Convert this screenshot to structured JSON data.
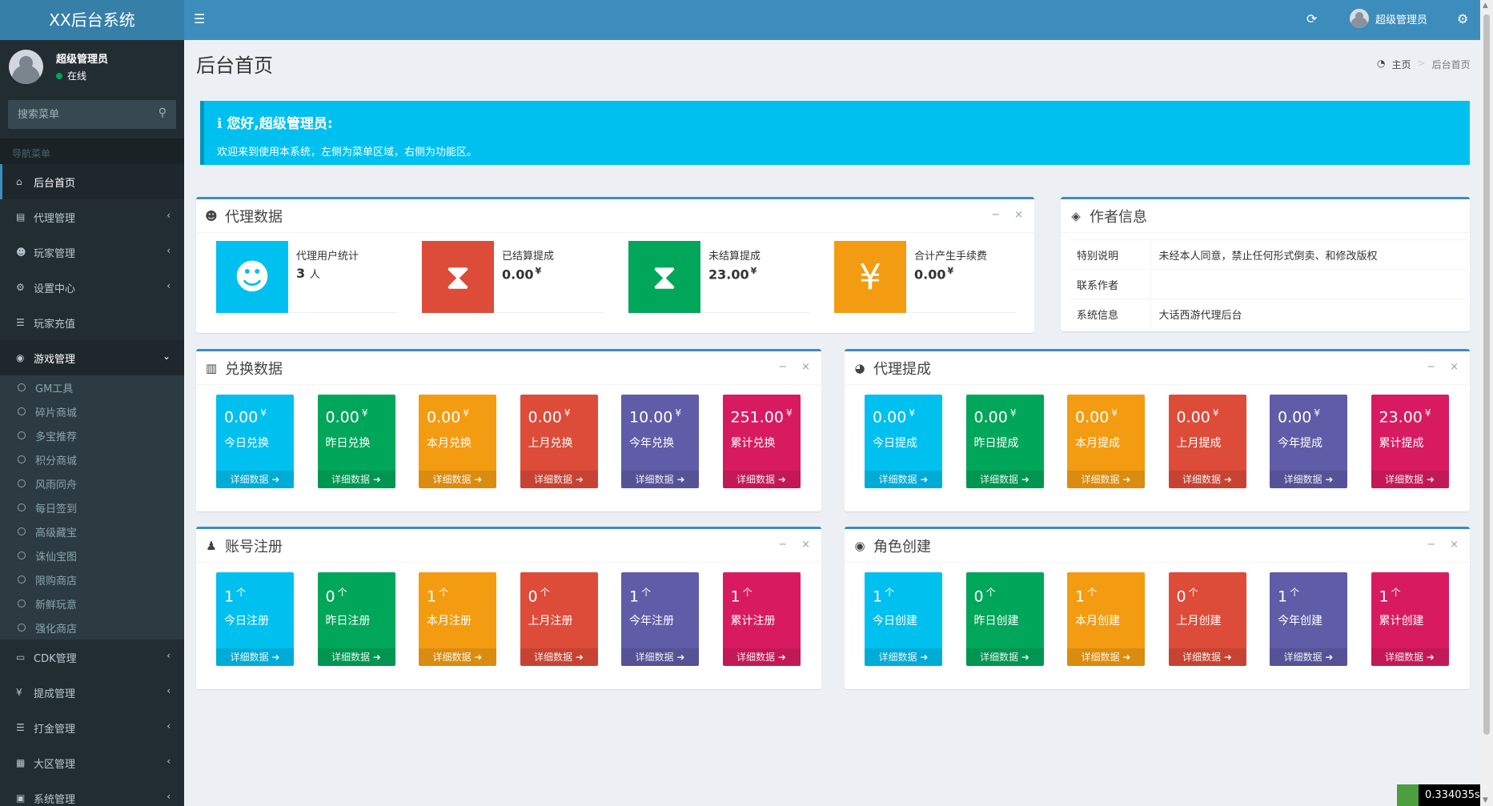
{
  "app": {
    "logo": "XX后台系统"
  },
  "topbar": {
    "user_name": "超级管理员"
  },
  "user_panel": {
    "name": "超级管理员",
    "status": "在线"
  },
  "search": {
    "placeholder": "搜索菜单"
  },
  "nav_header": "导航菜单",
  "menu": {
    "home": "后台首页",
    "agent": "代理管理",
    "player": "玩家管理",
    "settings": "设置中心",
    "recharge": "玩家充值",
    "game": "游戏管理",
    "cdk": "CDK管理",
    "commission": "提成管理",
    "gold": "打金管理",
    "region": "大区管理",
    "system": "系统管理"
  },
  "game_submenu": [
    "GM工具",
    "碎片商城",
    "多宝推荐",
    "积分商城",
    "风雨同舟",
    "每日签到",
    "高级藏宝",
    "诛仙宝图",
    "限购商店",
    "新鲜玩意",
    "强化商店"
  ],
  "page": {
    "title": "后台首页",
    "breadcrumb_home": "主页",
    "breadcrumb_current": "后台首页"
  },
  "callout": {
    "title": "您好,超级管理员:",
    "body": "欢迎来到使用本系统，左侧为菜单区域，右侧为功能区。"
  },
  "agent_box": {
    "title": "代理数据",
    "items": [
      {
        "label": "代理用户统计",
        "value": "3",
        "unit": "人"
      },
      {
        "label": "已结算提成",
        "value": "0.00",
        "unit": "¥"
      },
      {
        "label": "未结算提成",
        "value": "23.00",
        "unit": "¥"
      },
      {
        "label": "合计产生手续费",
        "value": "0.00",
        "unit": "¥"
      }
    ]
  },
  "author_box": {
    "title": "作者信息",
    "rows": [
      {
        "k": "特别说明",
        "v": "未经本人同意，禁止任何形式倒卖、和修改版权"
      },
      {
        "k": "联系作者",
        "v": ""
      },
      {
        "k": "系统信息",
        "v": "大话西游代理后台"
      }
    ]
  },
  "exchange_box": {
    "title": "兑换数据",
    "unit": "¥",
    "footer": "详细数据",
    "items": [
      {
        "value": "0.00",
        "label": "今日兑换"
      },
      {
        "value": "0.00",
        "label": "昨日兑换"
      },
      {
        "value": "0.00",
        "label": "本月兑换"
      },
      {
        "value": "0.00",
        "label": "上月兑换"
      },
      {
        "value": "10.00",
        "label": "今年兑换"
      },
      {
        "value": "251.00",
        "label": "累计兑换"
      }
    ]
  },
  "commission_box": {
    "title": "代理提成",
    "unit": "¥",
    "footer": "详细数据",
    "items": [
      {
        "value": "0.00",
        "label": "今日提成"
      },
      {
        "value": "0.00",
        "label": "昨日提成"
      },
      {
        "value": "0.00",
        "label": "本月提成"
      },
      {
        "value": "0.00",
        "label": "上月提成"
      },
      {
        "value": "0.00",
        "label": "今年提成"
      },
      {
        "value": "23.00",
        "label": "累计提成"
      }
    ]
  },
  "register_box": {
    "title": "账号注册",
    "unit": "个",
    "footer": "详细数据",
    "items": [
      {
        "value": "1",
        "label": "今日注册"
      },
      {
        "value": "0",
        "label": "昨日注册"
      },
      {
        "value": "1",
        "label": "本月注册"
      },
      {
        "value": "0",
        "label": "上月注册"
      },
      {
        "value": "1",
        "label": "今年注册"
      },
      {
        "value": "1",
        "label": "累计注册"
      }
    ]
  },
  "role_box": {
    "title": "角色创建",
    "unit": "个",
    "footer": "详细数据",
    "items": [
      {
        "value": "1",
        "label": "今日创建"
      },
      {
        "value": "0",
        "label": "昨日创建"
      },
      {
        "value": "1",
        "label": "本月创建"
      },
      {
        "value": "0",
        "label": "上月创建"
      },
      {
        "value": "1",
        "label": "今年创建"
      },
      {
        "value": "1",
        "label": "累计创建"
      }
    ]
  },
  "timer": "0.334035s",
  "colors": [
    "#00c0ef",
    "#00a65a",
    "#f39c12",
    "#dd4b39",
    "#605ca8",
    "#d81b60"
  ]
}
